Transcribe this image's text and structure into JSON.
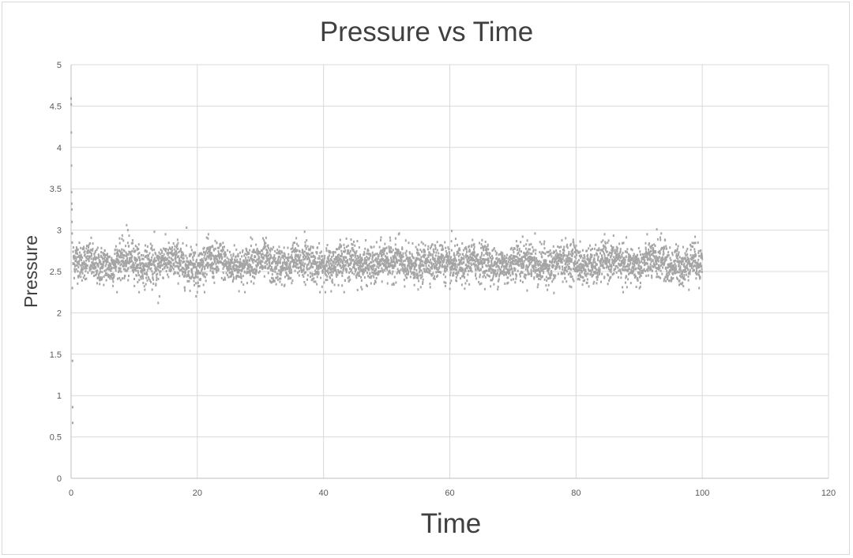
{
  "chart_data": {
    "type": "scatter",
    "title": "Pressure vs Time",
    "xlabel": "Time",
    "ylabel": "Pressure",
    "xlim": [
      0,
      120
    ],
    "ylim": [
      0,
      5
    ],
    "xticks": [
      "0",
      "20",
      "40",
      "60",
      "80",
      "100",
      "120"
    ],
    "yticks": [
      "0",
      "0.5",
      "1",
      "1.5",
      "2",
      "2.5",
      "3",
      "3.5",
      "4",
      "4.5",
      "5"
    ],
    "grid": true,
    "legend": "none",
    "marker_color": "#a5a5a5",
    "series": [
      {
        "name": "Pressure",
        "transient_points": [
          [
            0,
            4.59
          ],
          [
            0.02,
            4.52
          ],
          [
            0.04,
            4.18
          ],
          [
            0.06,
            3.78
          ],
          [
            0.08,
            3.46
          ],
          [
            0.1,
            3.32
          ],
          [
            0.12,
            3.25
          ],
          [
            0.14,
            3.1
          ],
          [
            0.16,
            2.96
          ],
          [
            0.18,
            2.85
          ],
          [
            0.2,
            2.3
          ],
          [
            0.22,
            1.42
          ],
          [
            0.24,
            0.86
          ],
          [
            0.26,
            0.67
          ]
        ],
        "steady_state": {
          "x_range": [
            0.3,
            100
          ],
          "mean": 2.6,
          "std": 0.11,
          "n_points": 5000
        },
        "notable_points": [
          [
            8.8,
            3.06
          ],
          [
            9,
            3.0
          ],
          [
            13.2,
            2.98
          ],
          [
            13.8,
            2.12
          ],
          [
            14,
            2.2
          ],
          [
            18.3,
            3.03
          ],
          [
            19.8,
            2.2
          ],
          [
            20,
            2.25
          ],
          [
            37,
            2.98
          ],
          [
            52,
            2.96
          ],
          [
            60.3,
            2.99
          ],
          [
            73.5,
            2.96
          ],
          [
            76.5,
            2.24
          ],
          [
            92.8,
            3.01
          ],
          [
            93.5,
            2.96
          ],
          [
            99.5,
            2.3
          ]
        ]
      }
    ]
  }
}
